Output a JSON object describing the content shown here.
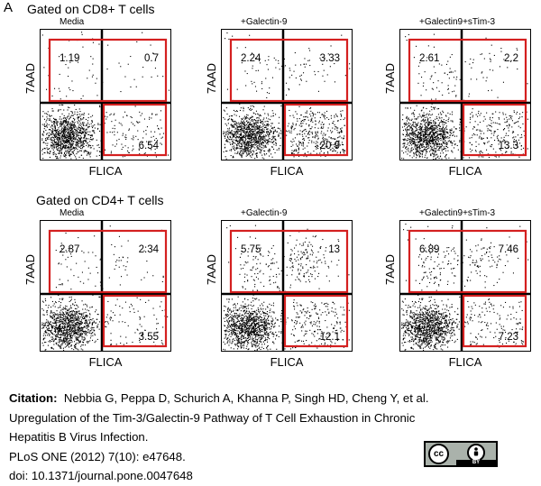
{
  "panel_letter": "A",
  "sections": [
    {
      "title": "Gated on CD8+ T cells"
    },
    {
      "title": "Gated on CD4+ T cells"
    }
  ],
  "chart_data": [
    {
      "type": "scatter",
      "section": 0,
      "condition": "Media",
      "xlabel": "FLICA",
      "ylabel": "7AAD",
      "quadrants": {
        "upper_left": "1.19",
        "upper_right": "0.7",
        "lower_right": "6.54"
      }
    },
    {
      "type": "scatter",
      "section": 0,
      "condition": "+Galectin-9",
      "xlabel": "FLICA",
      "ylabel": "7AAD",
      "quadrants": {
        "upper_left": "2.24",
        "upper_right": "3.33",
        "lower_right": "20.9"
      }
    },
    {
      "type": "scatter",
      "section": 0,
      "condition": "+Galectin9+sTim-3",
      "xlabel": "FLICA",
      "ylabel": "7AAD",
      "quadrants": {
        "upper_left": "2.61",
        "upper_right": "2.2",
        "lower_right": "13.3"
      }
    },
    {
      "type": "scatter",
      "section": 1,
      "condition": "Media",
      "xlabel": "FLICA",
      "ylabel": "7AAD",
      "quadrants": {
        "upper_left": "2.87",
        "upper_right": "2:34",
        "lower_right": "3.55"
      }
    },
    {
      "type": "scatter",
      "section": 1,
      "condition": "+Galectin-9",
      "xlabel": "FLICA",
      "ylabel": "7AAD",
      "quadrants": {
        "upper_left": "5.75",
        "upper_right": "13",
        "lower_right": "12.1"
      }
    },
    {
      "type": "scatter",
      "section": 1,
      "condition": "+Galectin9+sTim-3",
      "xlabel": "FLICA",
      "ylabel": "7AAD",
      "quadrants": {
        "upper_left": "6.89",
        "upper_right": "7.46",
        "lower_right": "7.23"
      }
    }
  ],
  "gate_color": "#d42020",
  "citation": {
    "label": "Citation:",
    "authors": "Nebbia G, Peppa D, Schurich A, Khanna P, Singh HD, Cheng Y, et al.",
    "title_line1": "Upregulation of the Tim-3/Galectin-9 Pathway of T Cell Exhaustion in Chronic",
    "title_line2": "Hepatitis B Virus Infection.",
    "journal": "PLoS ONE (2012) 7(10): e47648.",
    "doi": "doi: 10.1371/journal.pone.0047648"
  },
  "license_badge": {
    "cc": "cc",
    "by": "BY",
    "icon": "cc-by-icon"
  }
}
